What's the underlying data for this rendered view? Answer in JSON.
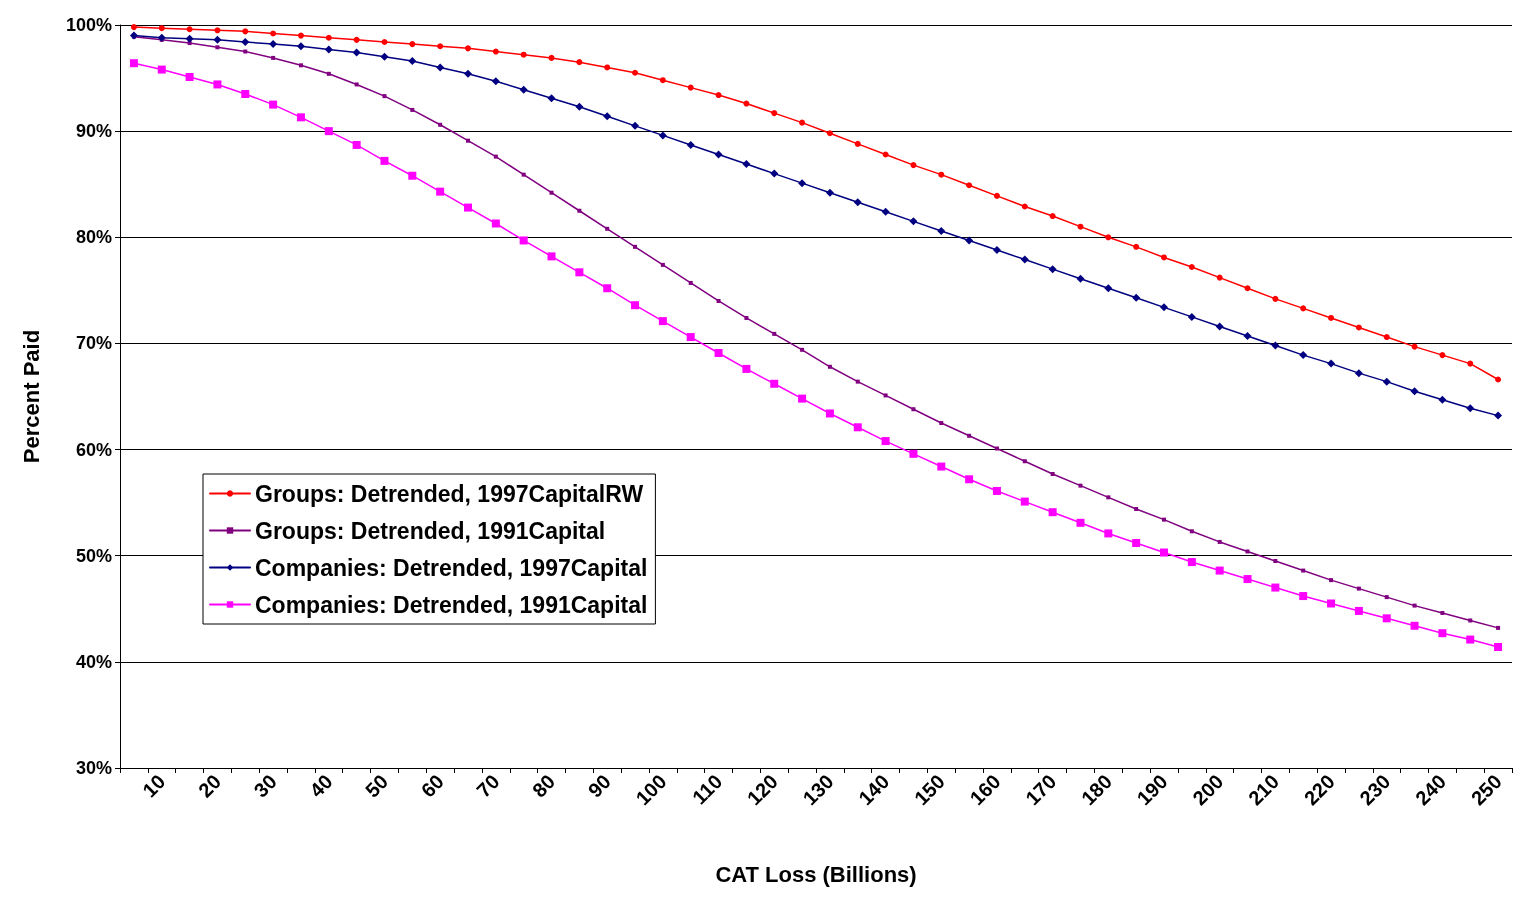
{
  "chart_data": {
    "type": "line",
    "xlabel": "CAT Loss (Billions)",
    "ylabel": "Percent Paid",
    "categories": [
      null,
      "10",
      null,
      "20",
      null,
      "30",
      null,
      "40",
      null,
      "50",
      null,
      "60",
      null,
      "70",
      null,
      "80",
      null,
      "90",
      null,
      "100",
      null,
      "110",
      null,
      "120",
      null,
      "130",
      null,
      "140",
      null,
      "150",
      null,
      "160",
      null,
      "170",
      null,
      "180",
      null,
      "190",
      null,
      "200",
      null,
      "210",
      null,
      "220",
      null,
      "230",
      null,
      "240",
      null,
      "250"
    ],
    "series": [
      {
        "name": "Groups: Detrended, 1997CapitalRW",
        "color": "#ff0000",
        "marker": "circle",
        "values": [
          99.8,
          99.7,
          99.6,
          99.5,
          99.4,
          99.2,
          99.0,
          98.8,
          98.6,
          98.4,
          98.2,
          98.0,
          97.8,
          97.5,
          97.2,
          96.9,
          96.5,
          96.0,
          95.5,
          94.8,
          94.1,
          93.4,
          92.6,
          91.7,
          90.8,
          89.8,
          88.8,
          87.8,
          86.8,
          85.9,
          84.9,
          83.9,
          82.9,
          82.0,
          81.0,
          80.0,
          79.1,
          78.1,
          77.2,
          76.2,
          75.2,
          74.2,
          73.3,
          72.4,
          71.5,
          70.6,
          69.7,
          68.9,
          68.1,
          66.6
        ]
      },
      {
        "name": "Groups: Detrended, 1991Capital",
        "color": "#800080",
        "marker": "square",
        "values": [
          98.9,
          98.6,
          98.3,
          97.9,
          97.5,
          96.9,
          96.2,
          95.4,
          94.4,
          93.3,
          92.0,
          90.6,
          89.1,
          87.6,
          85.9,
          84.2,
          82.5,
          80.8,
          79.1,
          77.4,
          75.7,
          74.0,
          72.4,
          70.9,
          69.4,
          67.8,
          66.4,
          65.1,
          63.8,
          62.5,
          61.3,
          60.1,
          58.9,
          57.7,
          56.6,
          55.5,
          54.4,
          53.4,
          52.3,
          51.3,
          50.4,
          49.5,
          48.6,
          47.7,
          46.9,
          46.1,
          45.3,
          44.6,
          43.9,
          43.2
        ]
      },
      {
        "name": "Companies: Detrended, 1997Capital",
        "color": "#000080",
        "marker": "diamond",
        "values": [
          99.0,
          98.8,
          98.7,
          98.6,
          98.4,
          98.2,
          98.0,
          97.7,
          97.4,
          97.0,
          96.6,
          96.0,
          95.4,
          94.7,
          93.9,
          93.1,
          92.3,
          91.4,
          90.5,
          89.6,
          88.7,
          87.8,
          86.9,
          86.0,
          85.1,
          84.2,
          83.3,
          82.4,
          81.5,
          80.6,
          79.7,
          78.8,
          77.9,
          77.0,
          76.1,
          75.2,
          74.3,
          73.4,
          72.5,
          71.6,
          70.7,
          69.8,
          68.9,
          68.1,
          67.2,
          66.4,
          65.5,
          64.7,
          63.9,
          63.2
        ]
      },
      {
        "name": "Companies: Detrended, 1991Capital",
        "color": "#ff00ff",
        "marker": "square",
        "values": [
          96.4,
          95.8,
          95.1,
          94.4,
          93.5,
          92.5,
          91.3,
          90.0,
          88.7,
          87.2,
          85.8,
          84.3,
          82.8,
          81.3,
          79.7,
          78.2,
          76.7,
          75.2,
          73.6,
          72.1,
          70.6,
          69.1,
          67.6,
          66.2,
          64.8,
          63.4,
          62.1,
          60.8,
          59.6,
          58.4,
          57.2,
          56.1,
          55.1,
          54.1,
          53.1,
          52.1,
          51.2,
          50.3,
          49.4,
          48.6,
          47.8,
          47.0,
          46.2,
          45.5,
          44.8,
          44.1,
          43.4,
          42.7,
          42.1,
          41.4
        ]
      }
    ],
    "ylim": [
      30,
      100
    ],
    "yticks": [
      {
        "value": 30,
        "label": "30%"
      },
      {
        "value": 40,
        "label": "40%"
      },
      {
        "value": 50,
        "label": "50%"
      },
      {
        "value": 60,
        "label": "60%"
      },
      {
        "value": 70,
        "label": "70%"
      },
      {
        "value": 80,
        "label": "80%"
      },
      {
        "value": 90,
        "label": "90%"
      },
      {
        "value": 100,
        "label": "100%"
      }
    ],
    "grid": "y",
    "legend": "left",
    "line_style": "solid"
  }
}
